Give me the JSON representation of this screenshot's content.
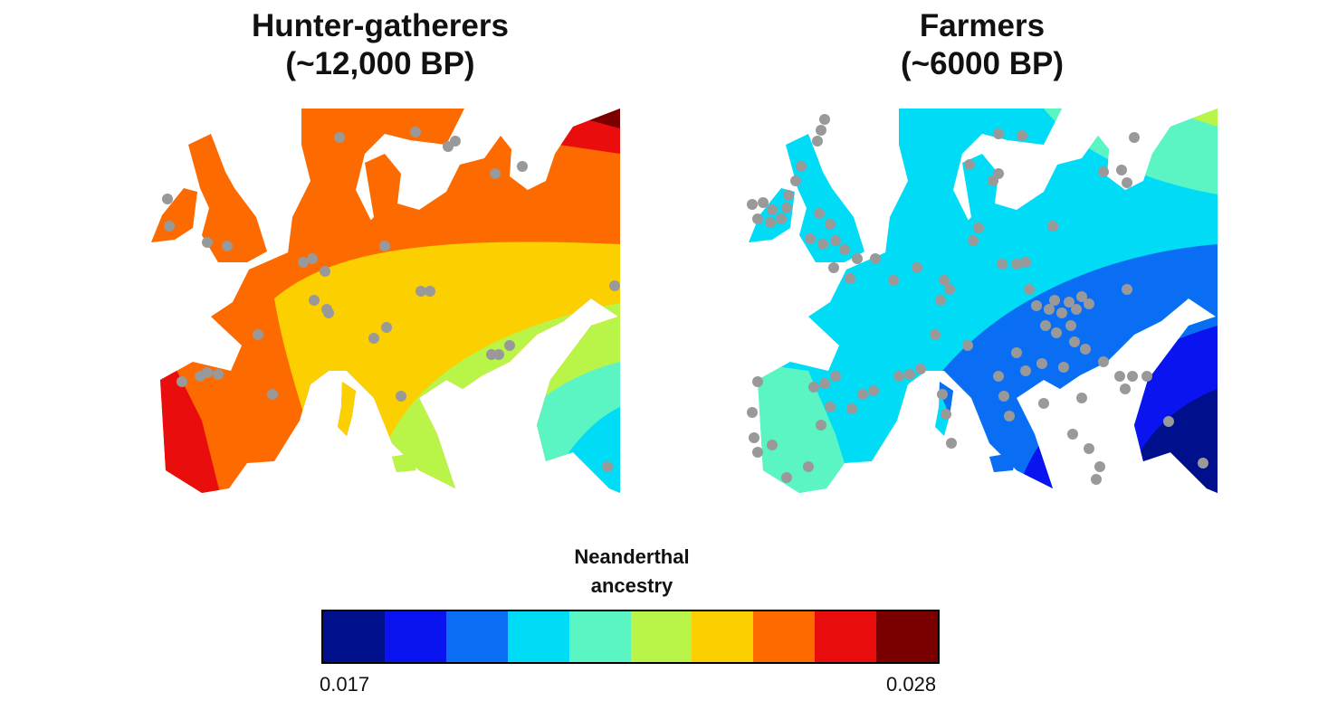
{
  "panels": [
    {
      "title_line1": "Hunter-gatherers",
      "title_line2": "(~12,000 BP)"
    },
    {
      "title_line1": "Farmers",
      "title_line2": "(~6000 BP)"
    }
  ],
  "legend": {
    "title_line1": "Neanderthal",
    "title_line2": "ancestry",
    "min_label": "0.017",
    "max_label": "0.028",
    "colors": [
      "#000f8c",
      "#0a14f0",
      "#0a6ef5",
      "#00dcf5",
      "#5af5c3",
      "#b9f548",
      "#fcd000",
      "#fd6a00",
      "#ea0d0d",
      "#7a0000"
    ]
  },
  "sample_point_color": "#999999"
}
